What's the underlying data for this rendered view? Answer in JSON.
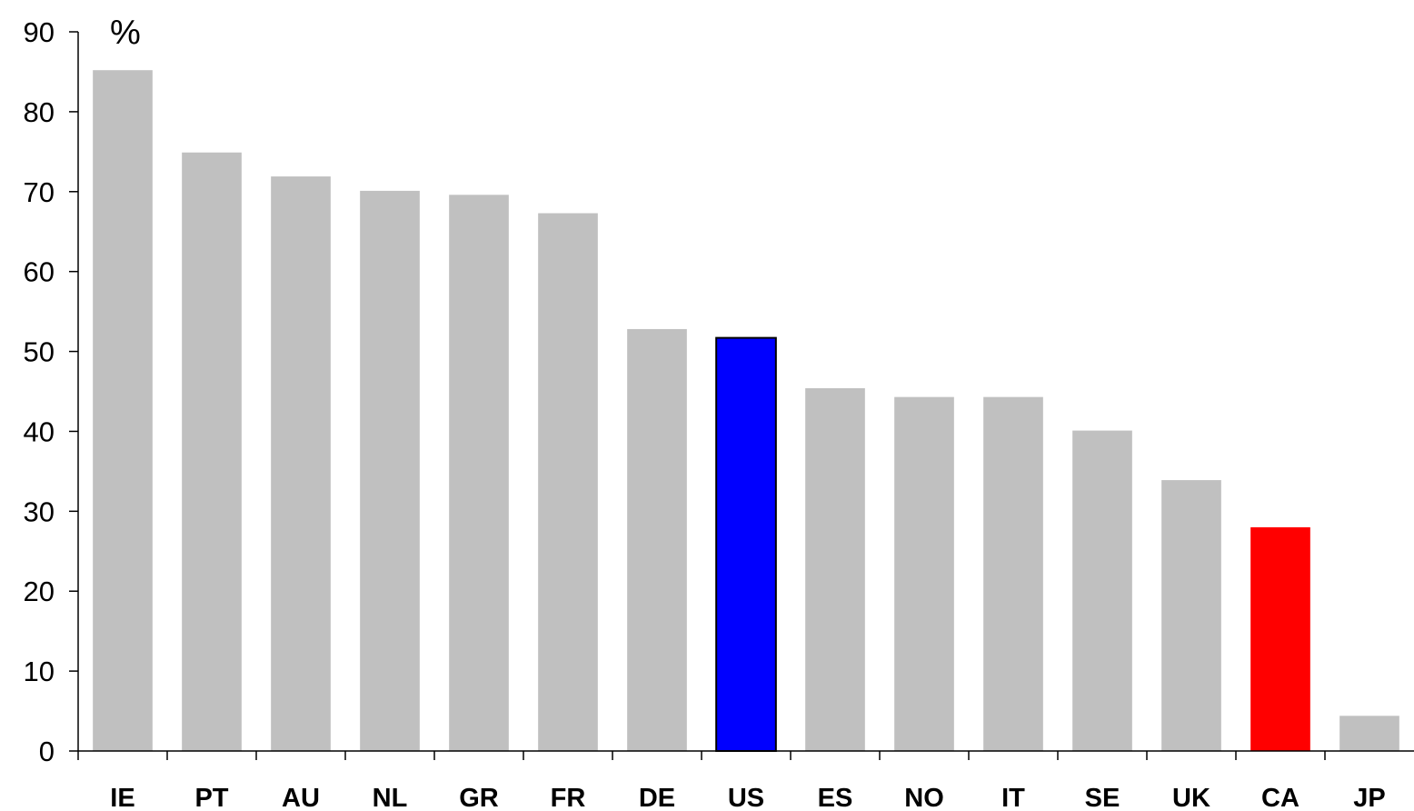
{
  "chart_data": {
    "type": "bar",
    "title": "",
    "xlabel": "",
    "ylabel": "%",
    "ylim": [
      0,
      90
    ],
    "yticks": [
      0,
      10,
      20,
      30,
      40,
      50,
      60,
      70,
      80,
      90
    ],
    "grid": false,
    "categories": [
      "IE",
      "PT",
      "AU",
      "NL",
      "GR",
      "FR",
      "DE",
      "US",
      "ES",
      "NO",
      "IT",
      "SE",
      "UK",
      "CA",
      "JP"
    ],
    "values": [
      85.2,
      74.9,
      71.9,
      70.1,
      69.6,
      67.3,
      52.8,
      51.7,
      45.4,
      44.3,
      44.3,
      40.1,
      33.9,
      28.0,
      4.4
    ],
    "bar_colors": [
      "#c0c0c0",
      "#c0c0c0",
      "#c0c0c0",
      "#c0c0c0",
      "#c0c0c0",
      "#c0c0c0",
      "#c0c0c0",
      "#0000ff",
      "#c0c0c0",
      "#c0c0c0",
      "#c0c0c0",
      "#c0c0c0",
      "#c0c0c0",
      "#ff0000",
      "#c0c0c0"
    ],
    "highlighted_outline": [
      "US"
    ]
  }
}
